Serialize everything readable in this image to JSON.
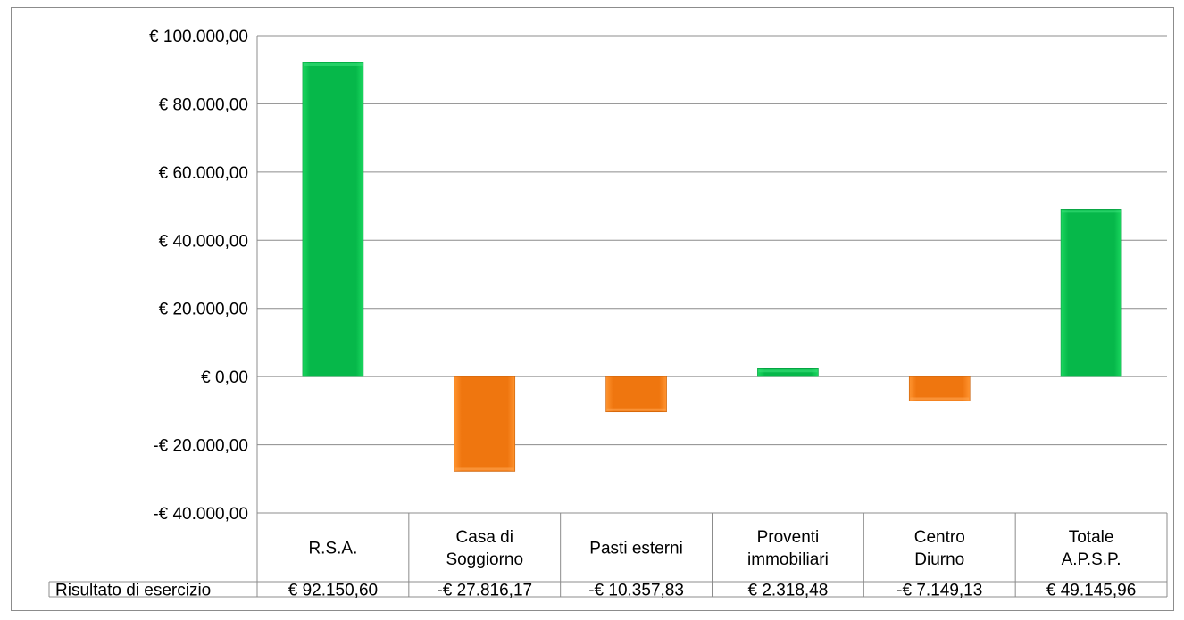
{
  "chart_data": {
    "type": "bar",
    "categories": [
      [
        "R.S.A."
      ],
      [
        "Casa di",
        "Soggiorno"
      ],
      [
        "Pasti esterni"
      ],
      [
        "Proventi",
        "immobiliari"
      ],
      [
        "Centro",
        "Diurno"
      ],
      [
        "Totale",
        "A.P.S.P."
      ]
    ],
    "series": [
      {
        "name": "Risultato di esercizio",
        "values": [
          92150.6,
          -27816.17,
          -10357.83,
          2318.48,
          -7149.13,
          49145.96
        ]
      }
    ],
    "table_values": [
      "€ 92.150,60",
      "-€ 27.816,17",
      "-€ 10.357,83",
      "€ 2.318,48",
      "-€ 7.149,13",
      "€ 49.145,96"
    ],
    "ytick_labels": [
      "€ 100.000,00",
      "€ 80.000,00",
      "€ 60.000,00",
      "€ 40.000,00",
      "€ 20.000,00",
      "€ 0,00",
      "-€ 20.000,00",
      "-€ 40.000,00"
    ],
    "yticks": [
      100000,
      80000,
      60000,
      40000,
      20000,
      0,
      -20000,
      -40000
    ],
    "ylim": [
      -40000,
      100000
    ],
    "grid": true,
    "colors": {
      "positive": "#0cbc50",
      "negative": "#f07810"
    }
  }
}
